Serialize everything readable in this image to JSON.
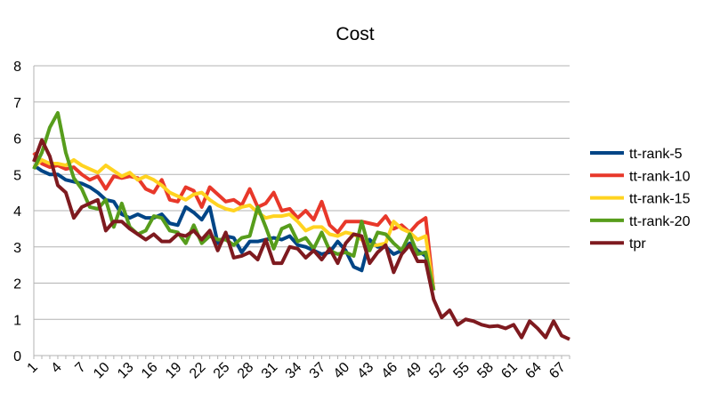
{
  "chart_data": {
    "type": "line",
    "title": "Cost",
    "categories": [
      1,
      null,
      null,
      4,
      null,
      null,
      7,
      null,
      null,
      10,
      null,
      null,
      13,
      null,
      null,
      16,
      null,
      null,
      19,
      null,
      null,
      22,
      null,
      null,
      25,
      null,
      null,
      28,
      null,
      null,
      31,
      null,
      null,
      34,
      null,
      null,
      37,
      null,
      null,
      40,
      null,
      null,
      43,
      null,
      null,
      46,
      null,
      null,
      49,
      null,
      null,
      52,
      null,
      null,
      55,
      null,
      null,
      58,
      null,
      null,
      61,
      null,
      null,
      64,
      null,
      null,
      67,
      null
    ],
    "ylim": [
      0,
      8
    ],
    "yticks": [
      0,
      1,
      2,
      3,
      4,
      5,
      6,
      7,
      8
    ],
    "grid": true,
    "legend": "right",
    "series": [
      {
        "name": "tt-rank-5",
        "color": "#004586",
        "values": [
          5.25,
          5.1,
          5.0,
          5.0,
          4.85,
          4.8,
          4.75,
          4.65,
          4.5,
          4.3,
          4.25,
          3.9,
          3.8,
          3.9,
          3.8,
          3.8,
          3.9,
          3.65,
          3.6,
          4.1,
          3.95,
          3.75,
          4.1,
          3.1,
          3.3,
          3.25,
          2.85,
          3.15,
          3.15,
          3.2,
          3.25,
          3.2,
          3.3,
          3.05,
          3.0,
          2.9,
          2.8,
          2.85,
          3.15,
          2.9,
          2.45,
          2.35,
          3.2,
          3.0,
          3.0,
          2.8,
          2.9,
          3.1,
          2.9,
          2.75,
          1.8,
          null,
          null,
          null,
          null,
          null,
          null,
          null,
          null,
          null,
          null,
          null,
          null,
          null,
          null,
          null,
          null,
          null
        ]
      },
      {
        "name": "tt-rank-10",
        "color": "#e8382a",
        "values": [
          5.6,
          5.3,
          5.2,
          5.25,
          5.15,
          5.2,
          5.0,
          4.85,
          4.95,
          4.6,
          4.95,
          4.9,
          4.95,
          4.9,
          4.6,
          4.5,
          4.85,
          4.3,
          4.25,
          4.65,
          4.55,
          4.1,
          4.65,
          4.45,
          4.25,
          4.3,
          4.15,
          4.6,
          4.1,
          4.2,
          4.5,
          4.0,
          4.05,
          3.8,
          4.0,
          3.75,
          4.25,
          3.6,
          3.4,
          3.7,
          3.7,
          3.7,
          3.65,
          3.6,
          3.85,
          3.5,
          3.6,
          3.4,
          3.65,
          3.8,
          1.8,
          null,
          null,
          null,
          null,
          null,
          null,
          null,
          null,
          null,
          null,
          null,
          null,
          null,
          null,
          null,
          null,
          null
        ]
      },
      {
        "name": "tt-rank-15",
        "color": "#ffd320",
        "values": [
          5.2,
          5.4,
          5.3,
          5.3,
          5.25,
          5.4,
          5.25,
          5.15,
          5.05,
          5.25,
          5.1,
          4.95,
          5.05,
          4.85,
          4.95,
          4.85,
          4.7,
          4.5,
          4.4,
          4.3,
          4.45,
          4.5,
          4.3,
          4.15,
          4.05,
          4.0,
          4.1,
          4.15,
          3.95,
          3.8,
          3.85,
          3.85,
          3.9,
          3.7,
          3.45,
          3.55,
          3.55,
          3.35,
          3.3,
          3.4,
          3.35,
          3.2,
          3.05,
          3.05,
          3.1,
          3.7,
          3.5,
          3.4,
          3.2,
          3.3,
          1.8,
          null,
          null,
          null,
          null,
          null,
          null,
          null,
          null,
          null,
          null,
          null,
          null,
          null,
          null,
          null,
          null,
          null
        ]
      },
      {
        "name": "tt-rank-20",
        "color": "#579d1c",
        "values": [
          5.15,
          5.6,
          6.3,
          6.7,
          5.6,
          4.9,
          4.6,
          4.1,
          4.05,
          4.3,
          3.55,
          4.2,
          3.55,
          3.35,
          3.45,
          3.85,
          3.8,
          3.45,
          3.4,
          3.1,
          3.6,
          3.1,
          3.3,
          3.2,
          3.2,
          3.05,
          3.25,
          3.3,
          4.1,
          3.55,
          2.95,
          3.5,
          3.6,
          3.15,
          3.25,
          2.95,
          3.4,
          2.9,
          2.8,
          2.85,
          2.75,
          3.7,
          2.9,
          3.4,
          3.35,
          3.1,
          2.9,
          3.35,
          2.8,
          2.85,
          1.8,
          null,
          null,
          null,
          null,
          null,
          null,
          null,
          null,
          null,
          null,
          null,
          null,
          null,
          null,
          null,
          null,
          null
        ]
      },
      {
        "name": "tpr",
        "color": "#7e1a1f",
        "values": [
          5.35,
          5.95,
          5.5,
          4.7,
          4.5,
          3.8,
          4.1,
          4.2,
          4.3,
          3.45,
          3.7,
          3.7,
          3.5,
          3.35,
          3.2,
          3.35,
          3.15,
          3.15,
          3.35,
          3.3,
          3.45,
          3.2,
          3.45,
          2.9,
          3.4,
          2.7,
          2.75,
          2.85,
          2.65,
          3.2,
          2.55,
          2.55,
          3.0,
          2.95,
          2.7,
          2.9,
          2.65,
          2.95,
          2.55,
          3.1,
          3.35,
          3.3,
          2.55,
          2.85,
          3.05,
          2.3,
          2.8,
          3.05,
          2.6,
          2.6,
          1.55,
          1.05,
          1.25,
          0.85,
          1.0,
          0.95,
          0.85,
          0.8,
          0.82,
          0.75,
          0.85,
          0.5,
          0.95,
          0.75,
          0.5,
          0.95,
          0.55,
          0.45
        ]
      }
    ]
  }
}
